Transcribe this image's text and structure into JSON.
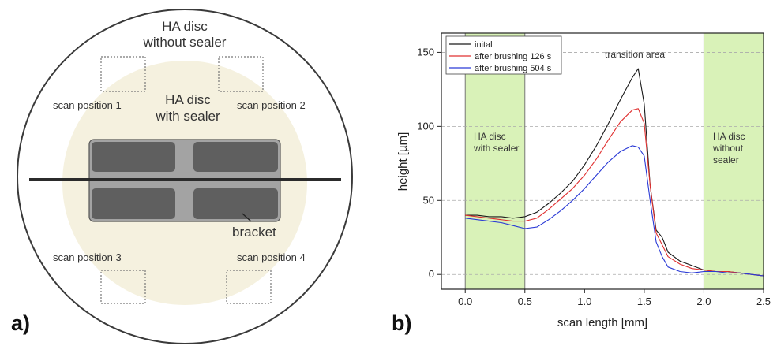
{
  "panel_a": {
    "panel_label": "a)",
    "outer_label_line1": "HA disc",
    "outer_label_line2": "without sealer",
    "inner_label_line1": "HA disc",
    "inner_label_line2": "with sealer",
    "scan_positions": [
      "scan position 1",
      "scan position 2",
      "scan position 3",
      "scan position 4"
    ],
    "bracket_label": "bracket",
    "colors": {
      "sealer_area": "#f5f1df",
      "bracket": "#5f5f5f",
      "bracket_frame": "#a3a3a3",
      "scan_line": "#2b2b2b"
    }
  },
  "panel_b": {
    "panel_label": "b)",
    "region_left_line1": "HA disc",
    "region_left_line2": "with sealer",
    "region_right_line1": "HA disc",
    "region_right_line2": "without",
    "region_right_line3": "sealer",
    "transition_label": "transition area",
    "region_color": "#d9f2b8"
  },
  "chart_data": {
    "type": "line",
    "title": "",
    "xlabel": "scan length [mm]",
    "ylabel": "height [µm]",
    "xlim": [
      -0.2,
      2.5
    ],
    "ylim": [
      -10,
      163
    ],
    "xticks": [
      "0.0",
      "0.5",
      "1.0",
      "1.5",
      "2.0",
      "2.5"
    ],
    "xtick_values": [
      0,
      0.5,
      1.0,
      1.5,
      2.0,
      2.5
    ],
    "yticks": [
      "0",
      "50",
      "100",
      "150"
    ],
    "ytick_values": [
      0,
      50,
      100,
      150
    ],
    "grid": "horizontal dashed at 0, 50, 100, 150",
    "legend_position": "top-left",
    "shaded_regions": [
      [
        0,
        0.5
      ],
      [
        2.0,
        2.5
      ]
    ],
    "series": [
      {
        "name": "inital",
        "color": "#1a1a1a",
        "x": [
          0.0,
          0.1,
          0.2,
          0.3,
          0.4,
          0.5,
          0.6,
          0.7,
          0.8,
          0.9,
          1.0,
          1.1,
          1.2,
          1.3,
          1.4,
          1.45,
          1.5,
          1.55,
          1.6,
          1.65,
          1.7,
          1.8,
          1.9,
          2.0,
          2.1,
          2.2,
          2.3,
          2.4,
          2.5
        ],
        "values": [
          40,
          40,
          39,
          39,
          38,
          39,
          42,
          48,
          55,
          63,
          74,
          87,
          102,
          118,
          133,
          139,
          115,
          60,
          30,
          25,
          15,
          9,
          6,
          3,
          2,
          2,
          1,
          0,
          -1
        ]
      },
      {
        "name": "after brushing 126 s",
        "color": "#e03030",
        "x": [
          0.0,
          0.1,
          0.2,
          0.3,
          0.4,
          0.5,
          0.6,
          0.7,
          0.8,
          0.9,
          1.0,
          1.1,
          1.2,
          1.3,
          1.4,
          1.45,
          1.5,
          1.55,
          1.6,
          1.65,
          1.7,
          1.8,
          1.9,
          2.0,
          2.1,
          2.2,
          2.3,
          2.4,
          2.5
        ],
        "values": [
          40,
          39,
          38,
          37,
          36,
          36,
          38,
          44,
          51,
          58,
          67,
          78,
          91,
          103,
          111,
          112,
          102,
          60,
          28,
          20,
          12,
          7,
          4,
          3,
          2,
          2,
          1,
          0,
          -1
        ]
      },
      {
        "name": "after brushing 504 s",
        "color": "#2a3ad6",
        "x": [
          0.0,
          0.1,
          0.2,
          0.3,
          0.4,
          0.5,
          0.6,
          0.7,
          0.8,
          0.9,
          1.0,
          1.1,
          1.2,
          1.3,
          1.4,
          1.45,
          1.5,
          1.55,
          1.6,
          1.65,
          1.7,
          1.8,
          1.9,
          2.0,
          2.1,
          2.2,
          2.3,
          2.4,
          2.5
        ],
        "values": [
          38,
          37,
          36,
          35,
          33,
          31,
          32,
          37,
          43,
          50,
          58,
          67,
          76,
          83,
          87,
          86,
          80,
          50,
          22,
          12,
          5,
          2,
          1,
          2,
          2,
          1,
          1,
          0,
          -1
        ]
      }
    ]
  }
}
